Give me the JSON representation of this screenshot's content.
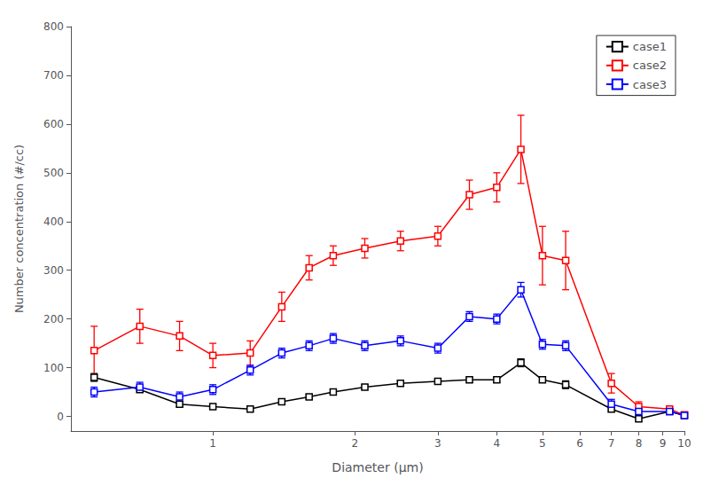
{
  "chart_data": {
    "type": "line",
    "xlabel": "Diameter (μm)",
    "ylabel": "Number concentration (#/cc)",
    "x": [
      0.56,
      0.7,
      0.85,
      1.0,
      1.2,
      1.4,
      1.6,
      1.8,
      2.1,
      2.5,
      3.0,
      3.5,
      4.0,
      4.5,
      5.0,
      5.6,
      7.0,
      8.0,
      9.3,
      10.0
    ],
    "series": [
      {
        "name": "case1",
        "color": "#000000",
        "values": [
          80,
          55,
          25,
          20,
          15,
          30,
          40,
          50,
          60,
          68,
          72,
          75,
          75,
          110,
          75,
          65,
          15,
          -5,
          10,
          2
        ],
        "yerr": [
          8,
          5,
          5,
          5,
          5,
          5,
          5,
          5,
          5,
          5,
          5,
          5,
          5,
          8,
          5,
          8,
          5,
          5,
          5,
          3
        ]
      },
      {
        "name": "case2",
        "color": "#ff0000",
        "values": [
          135,
          185,
          165,
          125,
          130,
          225,
          305,
          330,
          345,
          360,
          370,
          455,
          470,
          548,
          330,
          320,
          68,
          20,
          15,
          3
        ],
        "yerr": [
          50,
          35,
          30,
          25,
          25,
          30,
          25,
          20,
          20,
          20,
          20,
          30,
          30,
          70,
          60,
          60,
          20,
          10,
          5,
          3
        ]
      },
      {
        "name": "case3",
        "color": "#0000ff",
        "values": [
          50,
          60,
          40,
          55,
          95,
          130,
          145,
          160,
          145,
          155,
          140,
          205,
          200,
          260,
          148,
          145,
          25,
          10,
          10,
          2
        ],
        "yerr": [
          10,
          10,
          10,
          10,
          10,
          10,
          10,
          10,
          10,
          10,
          10,
          10,
          10,
          15,
          10,
          10,
          10,
          5,
          5,
          2
        ]
      }
    ],
    "xlim": [
      0.5,
      10
    ],
    "ylim": [
      -30,
      800
    ],
    "xticks": [
      1,
      2,
      3,
      4,
      5,
      6,
      7,
      8,
      9,
      10
    ],
    "yticks": [
      0,
      100,
      200,
      300,
      400,
      500,
      600,
      700,
      800
    ],
    "log": "x",
    "grid": false,
    "legend": "upper right",
    "marker": "square"
  }
}
